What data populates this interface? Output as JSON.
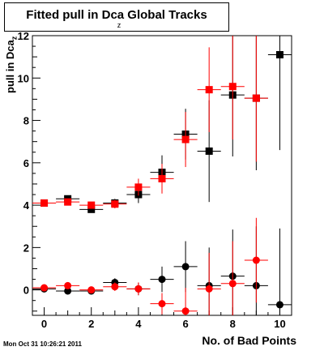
{
  "chart_data": {
    "type": "scatter",
    "title": "Fitted pull in Dca",
    "title_subscript": "z",
    "title_suffix": " Global Tracks",
    "xlabel": "No. of Bad Points",
    "ylabel": "pull in Dca",
    "ylabel_subscript": "z",
    "timestamp": "Mon Oct 31 10:26:21 2011",
    "xlim": [
      -0.5,
      10.5
    ],
    "ylim": [
      -1.2,
      12
    ],
    "x_ticks": [
      0,
      2,
      4,
      6,
      8,
      10
    ],
    "y_ticks": [
      0,
      2,
      4,
      6,
      8,
      10,
      12
    ],
    "grid": false,
    "series": [
      {
        "color": "#000000",
        "marker": "square",
        "points": [
          {
            "x": 0,
            "y": 4.1,
            "yerr": 0.1
          },
          {
            "x": 1,
            "y": 4.3,
            "yerr": 0.1
          },
          {
            "x": 2,
            "y": 3.8,
            "yerr": 0.15
          },
          {
            "x": 3,
            "y": 4.1,
            "yerr": 0.2
          },
          {
            "x": 4,
            "y": 4.5,
            "yerr": 0.4
          },
          {
            "x": 5,
            "y": 5.55,
            "yerr": 0.8
          },
          {
            "x": 6,
            "y": 7.35,
            "yerr": 1.2
          },
          {
            "x": 7,
            "y": 6.55,
            "yerr": 2.4
          },
          {
            "x": 8,
            "y": 9.2,
            "yerr": 2.9
          },
          {
            "x": 9,
            "y": 9.05,
            "yerr": 3.4
          },
          {
            "x": 10,
            "y": 11.1,
            "yerr": 4.5
          }
        ]
      },
      {
        "color": "#ff0000",
        "marker": "square",
        "points": [
          {
            "x": 0,
            "y": 4.1,
            "yerr": 0.1
          },
          {
            "x": 1,
            "y": 4.15,
            "yerr": 0.1
          },
          {
            "x": 2,
            "y": 4.0,
            "yerr": 0.15
          },
          {
            "x": 3,
            "y": 4.05,
            "yerr": 0.2
          },
          {
            "x": 4,
            "y": 4.85,
            "yerr": 0.4
          },
          {
            "x": 5,
            "y": 5.25,
            "yerr": 0.7
          },
          {
            "x": 6,
            "y": 7.1,
            "yerr": 1.3
          },
          {
            "x": 7,
            "y": 9.45,
            "yerr": 2.0
          },
          {
            "x": 8,
            "y": 9.6,
            "yerr": 2.5
          },
          {
            "x": 9,
            "y": 9.05,
            "yerr": 3.0
          }
        ]
      },
      {
        "color": "#000000",
        "marker": "circle",
        "points": [
          {
            "x": 0,
            "y": 0.05,
            "yerr": 0.1
          },
          {
            "x": 1,
            "y": -0.05,
            "yerr": 0.1
          },
          {
            "x": 2,
            "y": -0.05,
            "yerr": 0.15
          },
          {
            "x": 3,
            "y": 0.35,
            "yerr": 0.2
          },
          {
            "x": 4,
            "y": 0.05,
            "yerr": 0.3
          },
          {
            "x": 5,
            "y": 0.5,
            "yerr": 0.6
          },
          {
            "x": 6,
            "y": 1.1,
            "yerr": 1.2
          },
          {
            "x": 7,
            "y": 0.2,
            "yerr": 1.8
          },
          {
            "x": 8,
            "y": 0.65,
            "yerr": 2.2
          },
          {
            "x": 9,
            "y": 0.2,
            "yerr": 2.8
          },
          {
            "x": 10,
            "y": -0.7,
            "yerr": 3.6
          }
        ]
      },
      {
        "color": "#ff0000",
        "marker": "circle",
        "points": [
          {
            "x": 0,
            "y": 0.1,
            "yerr": 0.1
          },
          {
            "x": 1,
            "y": 0.2,
            "yerr": 0.1
          },
          {
            "x": 2,
            "y": 0.0,
            "yerr": 0.15
          },
          {
            "x": 3,
            "y": 0.15,
            "yerr": 0.2
          },
          {
            "x": 4,
            "y": 0.05,
            "yerr": 0.3
          },
          {
            "x": 5,
            "y": -0.65,
            "yerr": 0.5
          },
          {
            "x": 6,
            "y": -1.0,
            "yerr": 1.1
          },
          {
            "x": 7,
            "y": 0.05,
            "yerr": 1.7
          },
          {
            "x": 8,
            "y": 0.3,
            "yerr": 2.0
          },
          {
            "x": 9,
            "y": 1.4,
            "yerr": 2.0
          }
        ]
      }
    ]
  }
}
